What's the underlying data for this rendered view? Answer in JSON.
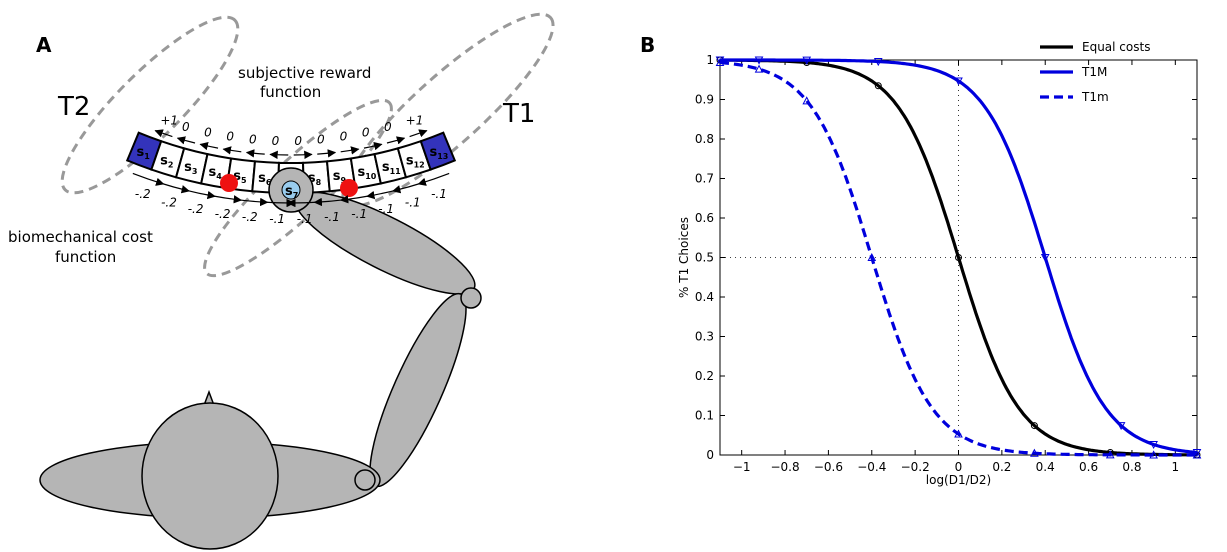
{
  "panel_a": {
    "label": "A",
    "target_left": "T2",
    "target_right": "T1",
    "reward_label_line1": "subjective reward",
    "reward_label_line2": "function",
    "cost_label_line1": "biomechanical cost",
    "cost_label_line2": "function",
    "states": [
      {
        "s": "s",
        "n": "1"
      },
      {
        "s": "s",
        "n": "2"
      },
      {
        "s": "s",
        "n": "3"
      },
      {
        "s": "s",
        "n": "4"
      },
      {
        "s": "s",
        "n": "5"
      },
      {
        "s": "s",
        "n": "6"
      },
      {
        "s": "s",
        "n": "7"
      },
      {
        "s": "s",
        "n": "8"
      },
      {
        "s": "s",
        "n": "9"
      },
      {
        "s": "s",
        "n": "10"
      },
      {
        "s": "s",
        "n": "11"
      },
      {
        "s": "s",
        "n": "12"
      },
      {
        "s": "s",
        "n": "13"
      }
    ],
    "reward_left": [
      "+1",
      "0",
      "0",
      "0",
      "0",
      "0"
    ],
    "reward_right": [
      "0",
      "0",
      "0",
      "0",
      "0",
      "+1"
    ],
    "cost_left": [
      "-.2",
      "-.2",
      "-.2",
      "-.2",
      "-.2",
      "-.1"
    ],
    "cost_right": [
      "-.1",
      "-.1",
      "-.1",
      "-.1",
      "-.1",
      "-.1"
    ],
    "colors": {
      "target": "#3333bb",
      "red_dot": "#ee1111",
      "arm": "#b5b5b5",
      "hand": "#99ccee",
      "dash": "#999999"
    }
  },
  "panel_b": {
    "label": "B",
    "chart_data": {
      "type": "line",
      "xlabel": "log(D1/D2)",
      "ylabel": "% T1 Choices",
      "xlim": [
        -1.1,
        1.1
      ],
      "ylim": [
        0,
        1
      ],
      "xticks": [
        -1,
        -0.8,
        -0.6,
        -0.4,
        -0.2,
        0,
        0.2,
        0.4,
        0.6,
        0.8,
        1
      ],
      "xtick_labels": [
        "−1",
        "−0.8",
        "−0.6",
        "−0.4",
        "−0.2",
        "0",
        "0.2",
        "0.4",
        "0.6",
        "0.8",
        "1"
      ],
      "yticks": [
        0,
        0.1,
        0.2,
        0.3,
        0.4,
        0.5,
        0.6,
        0.7,
        0.8,
        0.9,
        1
      ],
      "ytick_labels": [
        "0",
        "0.1",
        "0.2",
        "0.3",
        "0.4",
        "0.5",
        "0.6",
        "0.7",
        "0.8",
        "0.9",
        "1"
      ],
      "legend_position": "top-right",
      "series": [
        {
          "name": "Equal costs",
          "color": "#000000",
          "dash": "solid",
          "x0": 0.0,
          "k": 7.2,
          "marker": "circle",
          "mx": [
            -1.1,
            -0.7,
            -0.37,
            0,
            0.35,
            0.7,
            1.1
          ]
        },
        {
          "name": "T1M",
          "color": "#0000dd",
          "dash": "solid",
          "x0": 0.4,
          "k": 7.2,
          "marker": "tri-down",
          "mx": [
            -1.1,
            -0.92,
            -0.7,
            -0.37,
            0,
            0.4,
            0.75,
            0.9,
            1.1
          ]
        },
        {
          "name": "T1m",
          "color": "#0000dd",
          "dash": "dashed",
          "x0": -0.4,
          "k": 7.2,
          "marker": "tri-up",
          "mx": [
            -1.1,
            -0.92,
            -0.7,
            -0.4,
            0,
            0.35,
            0.7,
            0.9,
            1.1
          ]
        }
      ]
    }
  }
}
